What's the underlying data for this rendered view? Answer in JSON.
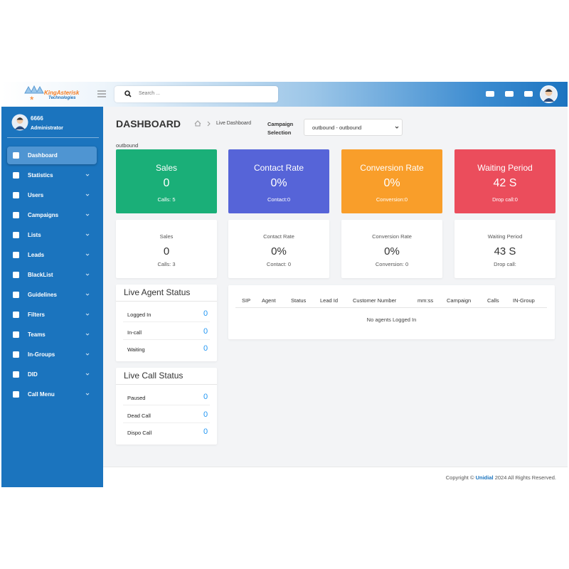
{
  "header": {
    "logo": "KingAsterisk",
    "logo_sub": "Technologies",
    "search_placeholder": "Search ..."
  },
  "sidebar": {
    "user_name": "6666",
    "user_role": "Administrator",
    "menu": [
      "Dashboard",
      "Statistics",
      "Users",
      "Campaigns",
      "Lists",
      "Leads",
      "BlackList",
      "Guidelines",
      "Filters",
      "Teams",
      "In-Groups",
      "DID",
      "Call Menu"
    ]
  },
  "page": {
    "title": "DASHBOARD",
    "breadcrumb": "Live Dashboard",
    "campaign_label": "Campaign Selection",
    "campaign_value": "outbound - outbound",
    "campaign_name": "outbound"
  },
  "cards": [
    {
      "title": "Sales",
      "value": "0",
      "sub": "Calls: 5"
    },
    {
      "title": "Contact Rate",
      "value": "0%",
      "sub": "Contact:0"
    },
    {
      "title": "Conversion Rate",
      "value": "0%",
      "sub": "Conversion:0"
    },
    {
      "title": "Waiting Period",
      "value": "42 S",
      "sub": "Drop call:0"
    }
  ],
  "stats": [
    {
      "title": "Sales",
      "value": "0",
      "sub": "Calls: 3"
    },
    {
      "title": "Contact Rate",
      "value": "0%",
      "sub": "Contact: 0"
    },
    {
      "title": "Conversion Rate",
      "value": "0%",
      "sub": "Conversion: 0"
    },
    {
      "title": "Waiting Period",
      "value": "43 S",
      "sub": "Drop call:"
    }
  ],
  "live_agent_status": {
    "title": "Live Agent Status",
    "rows": [
      {
        "label": "Logged In",
        "value": 0
      },
      {
        "label": "In-call",
        "value": 0
      },
      {
        "label": "Waiting",
        "value": 0
      }
    ]
  },
  "live_call_status": {
    "title": "Live Call Status",
    "rows": [
      {
        "label": "Paused",
        "value": 0
      },
      {
        "label": "Dead Call",
        "value": 0
      },
      {
        "label": "Dispo Call",
        "value": 0
      }
    ]
  },
  "agents_table": {
    "headers": [
      "SIP",
      "Agent",
      "Status",
      "Lead Id",
      "Customer Number",
      "mm:ss",
      "Campaign",
      "Calls",
      "IN-Group"
    ],
    "empty": "No agents Logged In"
  },
  "footer": {
    "prefix": "Copyright ©",
    "brand": "Unidial",
    "suffix": "2024 All Rights Reserved."
  }
}
